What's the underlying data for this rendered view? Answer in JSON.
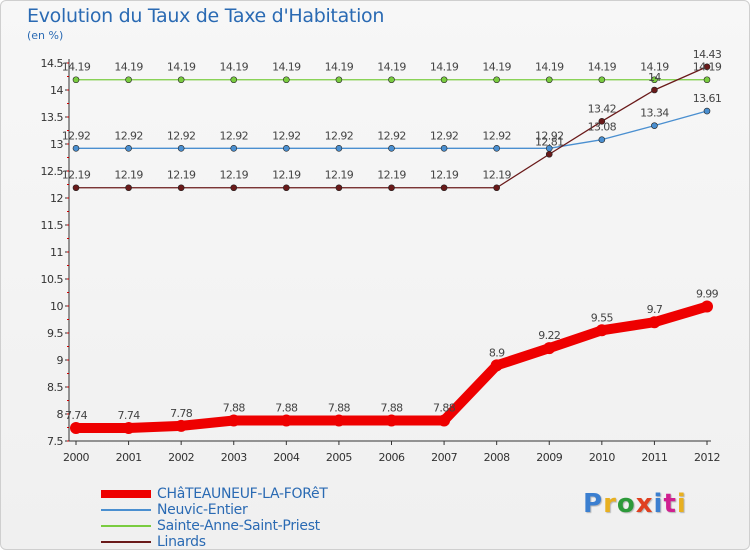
{
  "header": {
    "title": "Evolution du Taux de Taxe d'Habitation",
    "unit": "(en %)"
  },
  "logo": {
    "text": "Proxiti",
    "colors": [
      "#3b7fd0",
      "#e8b020",
      "#2d9a3a",
      "#e04020",
      "#3b7fd0",
      "#d02090",
      "#e8b020"
    ]
  },
  "chart_data": {
    "type": "line",
    "title": "Evolution du Taux de Taxe d'Habitation",
    "ylabel": "(en %)",
    "xlabel": "",
    "ylim": [
      7.5,
      14.5
    ],
    "grid": false,
    "legend_position": "bottom-left",
    "categories": [
      "2000",
      "2001",
      "2002",
      "2003",
      "2004",
      "2005",
      "2006",
      "2007",
      "2008",
      "2009",
      "2010",
      "2011",
      "2012"
    ],
    "y_ticks": [
      "7.5",
      "8",
      "8.5",
      "9",
      "9.5",
      "10",
      "10.5",
      "11",
      "11.5",
      "12",
      "12.5",
      "13",
      "13.5",
      "14",
      "14.5"
    ],
    "series": [
      {
        "name": "CHâTEAUNEUF-LA-FORêT",
        "color": "#ee0000",
        "values": [
          7.74,
          7.74,
          7.78,
          7.88,
          7.88,
          7.88,
          7.88,
          7.88,
          8.9,
          9.22,
          9.55,
          9.7,
          9.99
        ],
        "labels": [
          "7.74",
          "7.74",
          "7.78",
          "7.88",
          "7.88",
          "7.88",
          "7.88",
          "7.88",
          "8.9",
          "9.22",
          "9.55",
          "9.7",
          "9.99"
        ]
      },
      {
        "name": "Neuvic-Entier",
        "color": "#4a8fd0",
        "values": [
          12.92,
          12.92,
          12.92,
          12.92,
          12.92,
          12.92,
          12.92,
          12.92,
          12.92,
          12.92,
          13.08,
          13.34,
          13.61
        ],
        "labels": [
          "12.92",
          "12.92",
          "12.92",
          "12.92",
          "12.92",
          "12.92",
          "12.92",
          "12.92",
          "12.92",
          "12.92",
          "13.08",
          "13.34",
          "13.61"
        ]
      },
      {
        "name": "Sainte-Anne-Saint-Priest",
        "color": "#7acc40",
        "values": [
          14.19,
          14.19,
          14.19,
          14.19,
          14.19,
          14.19,
          14.19,
          14.19,
          14.19,
          14.19,
          14.19,
          14.19,
          14.19
        ],
        "labels": [
          "14.19",
          "14.19",
          "14.19",
          "14.19",
          "14.19",
          "14.19",
          "14.19",
          "14.19",
          "14.19",
          "14.19",
          "14.19",
          "14.19",
          "14.19"
        ]
      },
      {
        "name": "Linards",
        "color": "#6a1a1a",
        "values": [
          12.19,
          12.19,
          12.19,
          12.19,
          12.19,
          12.19,
          12.19,
          12.19,
          12.19,
          12.81,
          13.42,
          14,
          14.43
        ],
        "labels": [
          "12.19",
          "12.19",
          "12.19",
          "12.19",
          "12.19",
          "12.19",
          "12.19",
          "12.19",
          "12.19",
          "12.81",
          "13.42",
          "14",
          "14.43"
        ]
      }
    ]
  }
}
